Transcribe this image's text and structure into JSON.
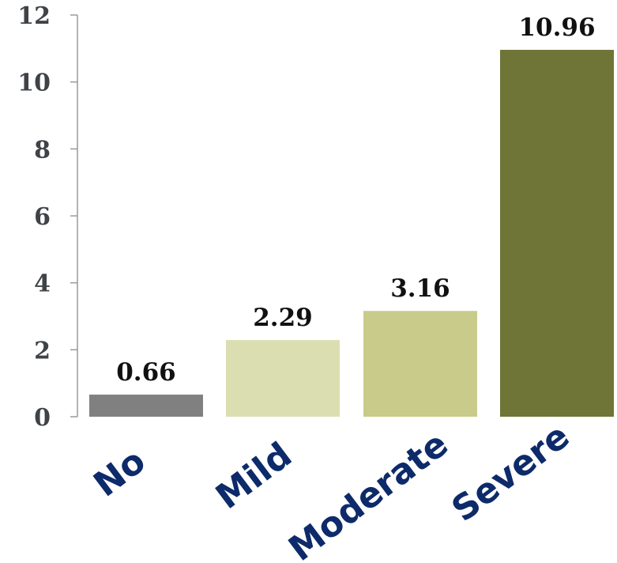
{
  "chart_data": {
    "type": "bar",
    "categories": [
      "No",
      "Mild",
      "Moderate",
      "Severe"
    ],
    "values": [
      0.66,
      2.29,
      3.16,
      10.96
    ],
    "value_labels": [
      "0.66",
      "2.29",
      "3.16",
      "10.96"
    ],
    "colors": [
      "#808080",
      "#dbdeb0",
      "#c8cb8a",
      "#6f7437"
    ],
    "yticks": [
      "0",
      "2",
      "4",
      "6",
      "8",
      "10",
      "12"
    ],
    "ylim": [
      0,
      12
    ],
    "title": "",
    "xlabel": "",
    "ylabel": "",
    "grid": false,
    "legend": "none"
  }
}
